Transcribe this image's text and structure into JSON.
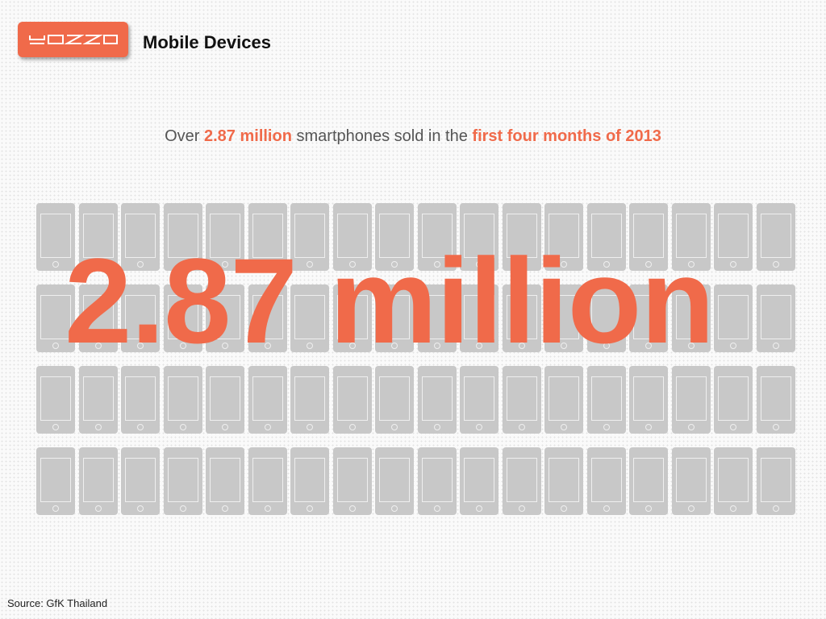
{
  "header": {
    "logo_text": "YOZZO",
    "title": "Mobile Devices"
  },
  "subtitle": {
    "prefix": "Over ",
    "highlight1": "2.87 million",
    "middle": " smartphones sold in the ",
    "highlight2": "first four months of 2013"
  },
  "infographic": {
    "big_number": "2.87 million",
    "phone_icon": "smartphone-icon",
    "rows": 4,
    "columns": 18
  },
  "footer": {
    "source": "Source: GfK Thailand"
  },
  "colors": {
    "accent": "#f06a4a",
    "phone_gray": "#c8c8c8",
    "text": "#111111"
  }
}
